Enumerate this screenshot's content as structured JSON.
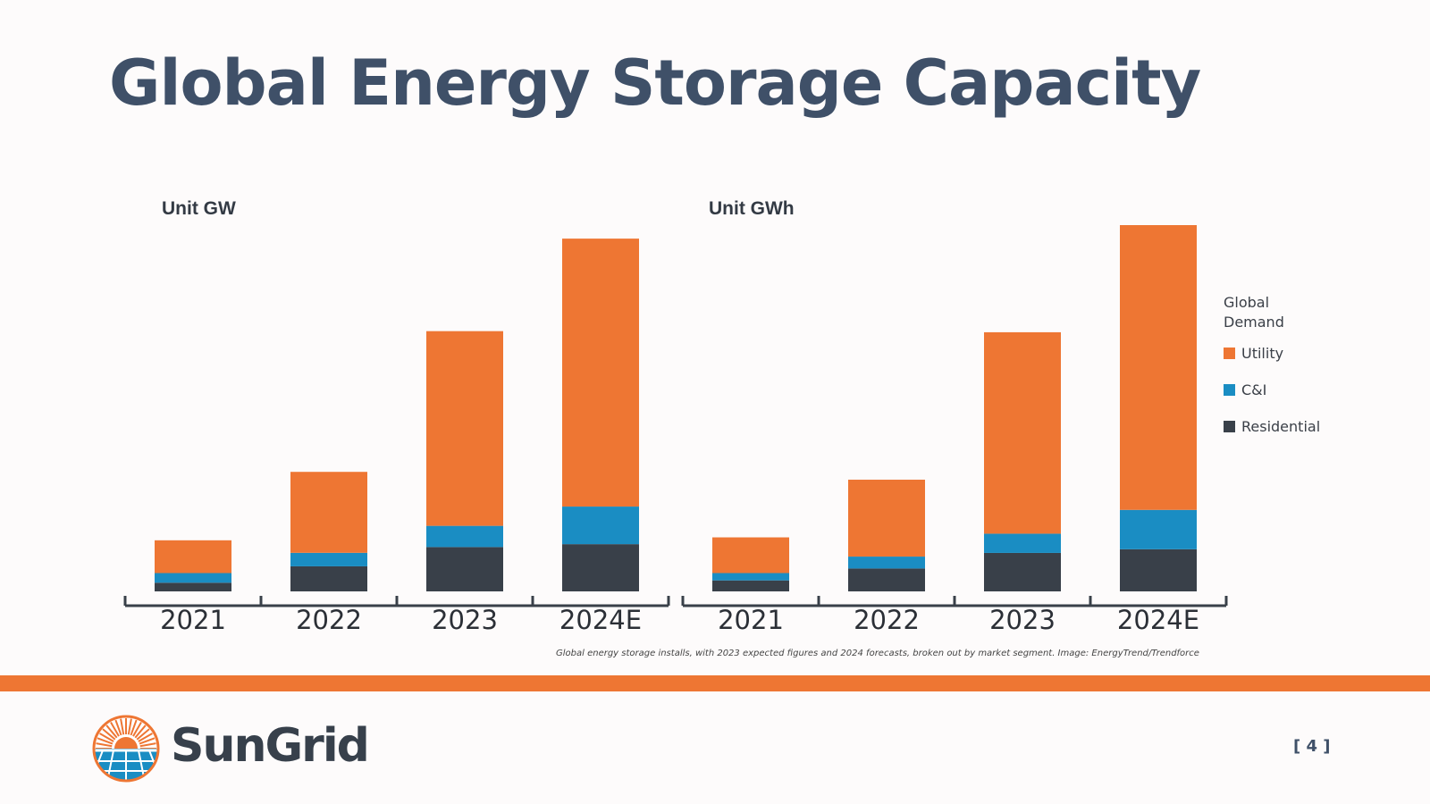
{
  "slide": {
    "title": "Global Energy Storage Capacity",
    "page_number": "[ 4 ]"
  },
  "colors": {
    "utility": "#ee7633",
    "ci": "#1a8dc3",
    "residential": "#394049",
    "band": "#ee7633",
    "axis": "#394049"
  },
  "legend": {
    "title": "Global Demand",
    "items": [
      {
        "key": "utility",
        "label": "Utility"
      },
      {
        "key": "ci",
        "label": "C&I"
      },
      {
        "key": "residential",
        "label": "Residential"
      }
    ]
  },
  "caption": "Global energy storage installs, with 2023 expected figures and 2024 forecasts, broken out by market segment. Image: EnergyTrend/Trendforce",
  "logo": {
    "text": "SunGrid",
    "icon": "sun-grid-logo-icon"
  },
  "chart_data": [
    {
      "type": "bar",
      "stacked": true,
      "unit_label": "Unit GW",
      "categories": [
        "2021",
        "2022",
        "2023",
        "2024E"
      ],
      "series": [
        {
          "name": "Residential",
          "key": "residential",
          "values": [
            0.9,
            2.6,
            4.6,
            4.9
          ]
        },
        {
          "name": "C&I",
          "key": "ci",
          "values": [
            1.0,
            1.4,
            2.2,
            3.9
          ]
        },
        {
          "name": "Utility",
          "key": "utility",
          "values": [
            3.4,
            8.4,
            20.2,
            27.8
          ]
        }
      ],
      "ylim": [
        0,
        38
      ],
      "grid": false
    },
    {
      "type": "bar",
      "stacked": true,
      "unit_label": "Unit GWh",
      "categories": [
        "2021",
        "2022",
        "2023",
        "2024E"
      ],
      "series": [
        {
          "name": "Residential",
          "key": "residential",
          "values": [
            1.2,
            2.5,
            4.2,
            4.6
          ]
        },
        {
          "name": "C&I",
          "key": "ci",
          "values": [
            0.8,
            1.3,
            2.1,
            4.3
          ]
        },
        {
          "name": "Utility",
          "key": "utility",
          "values": [
            3.9,
            8.4,
            22.0,
            31.1
          ]
        }
      ],
      "ylim": [
        0,
        40
      ],
      "grid": false
    }
  ]
}
